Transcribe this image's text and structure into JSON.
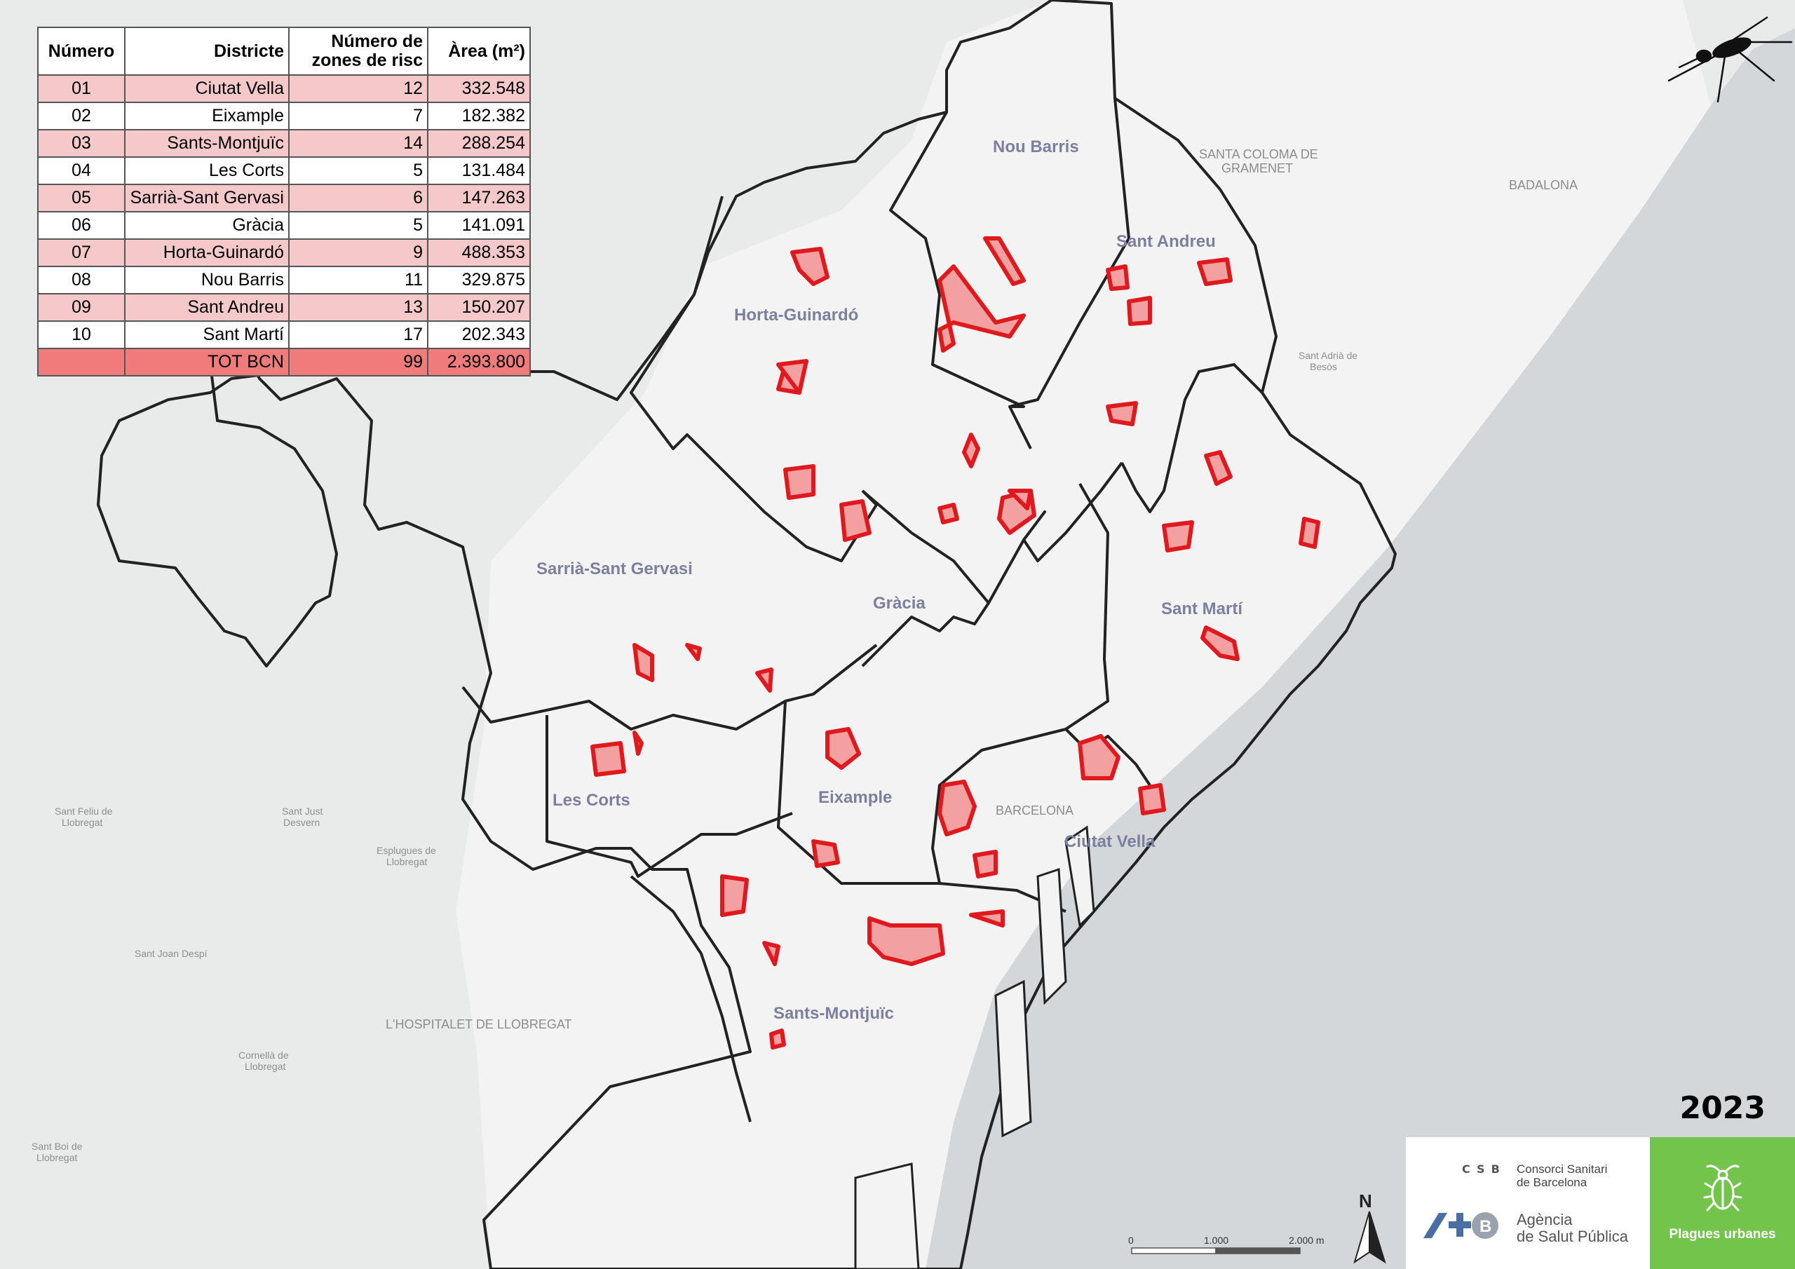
{
  "table": {
    "headers": {
      "numero": "Número",
      "districte": "Districte",
      "zones_line1": "Número de",
      "zones_line2": "zones de risc",
      "area": "Àrea (m²)"
    },
    "rows": [
      {
        "num": "01",
        "district": "Ciutat Vella",
        "zones": "12",
        "area": "332.548"
      },
      {
        "num": "02",
        "district": "Eixample",
        "zones": "7",
        "area": "182.382"
      },
      {
        "num": "03",
        "district": "Sants-Montjuïc",
        "zones": "14",
        "area": "288.254"
      },
      {
        "num": "04",
        "district": "Les Corts",
        "zones": "5",
        "area": "131.484"
      },
      {
        "num": "05",
        "district": "Sarrià-Sant Gervasi",
        "zones": "6",
        "area": "147.263"
      },
      {
        "num": "06",
        "district": "Gràcia",
        "zones": "5",
        "area": "141.091"
      },
      {
        "num": "07",
        "district": "Horta-Guinardó",
        "zones": "9",
        "area": "488.353"
      },
      {
        "num": "08",
        "district": "Nou Barris",
        "zones": "11",
        "area": "329.875"
      },
      {
        "num": "09",
        "district": "Sant Andreu",
        "zones": "13",
        "area": "150.207"
      },
      {
        "num": "10",
        "district": "Sant Martí",
        "zones": "17",
        "area": "202.343"
      }
    ],
    "total": {
      "num": "",
      "district": "TOT BCN",
      "zones": "99",
      "area": "2.393.800"
    }
  },
  "map": {
    "district_labels": {
      "nou_barris": "Nou Barris",
      "sant_andreu": "Sant Andreu",
      "horta_guinardo": "Horta-Guinardó",
      "sarria": "Sarrià-Sant Gervasi",
      "gracia": "Gràcia",
      "sant_marti": "Sant Martí",
      "les_corts": "Les Corts",
      "eixample": "Eixample",
      "ciutat_vella": "Ciutat Vella",
      "sants_montjuic": "Sants-Montjuïc"
    },
    "place_labels": {
      "santa_coloma_1": "SANTA COLOMA DE",
      "santa_coloma_2": "GRAMENET",
      "badalona": "BADALONA",
      "hospitalet": "L'HOSPITALET DE LLOBREGAT",
      "barcelona": "BARCELONA",
      "sant_feliu_1": "Sant Feliu de",
      "sant_feliu_2": "Llobregat",
      "sant_just_1": "Sant Just",
      "sant_just_2": "Desvern",
      "esplugues_1": "Esplugues de",
      "esplugues_2": "Llobregat",
      "sant_joan_despi": "Sant Joan Despí",
      "cornella_1": "Cornellà de",
      "cornella_2": "Llobregat",
      "sant_boi_1": "Sant Boi de",
      "sant_boi_2": "Llobregat",
      "sant_adria_1": "Sant Adrià de",
      "sant_adria_2": "Besòs"
    },
    "scale": {
      "zero": "0",
      "mid": "1.000",
      "end": "2.000 m"
    },
    "north": "N",
    "colors": {
      "zone_fill": "#f2a0a0",
      "zone_stroke": "#e0191f",
      "boundary": "#222222",
      "sea": "#d4d7da",
      "land": "#e9eaea",
      "city_land": "#f3f3f3"
    }
  },
  "year": "2023",
  "logos": {
    "csb_abbr": "CSB",
    "csb_name_1": "Consorci Sanitari",
    "csb_name_2": "de Barcelona",
    "aspb_name_1": "Agència",
    "aspb_name_2": "de Salut Pública",
    "plagues": "Plagues urbanes",
    "panel_color": "#72c44b"
  }
}
